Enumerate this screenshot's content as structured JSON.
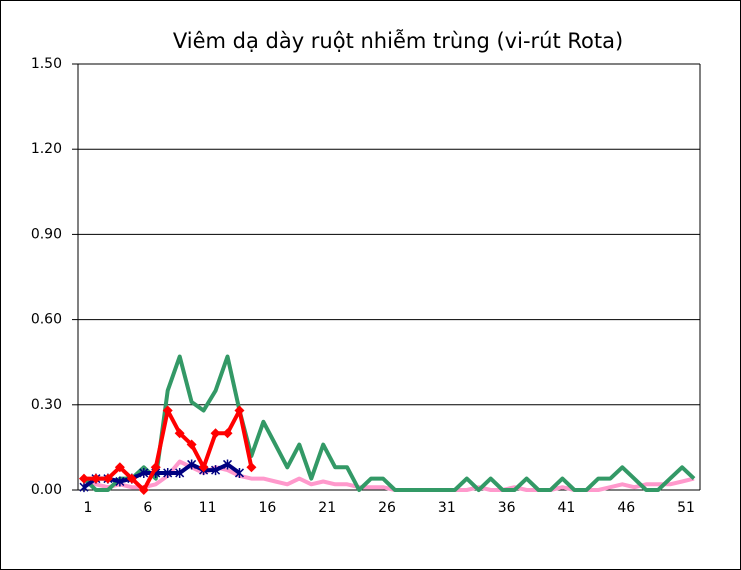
{
  "chart_data": {
    "type": "line",
    "title": "Viêm dạ dày ruột nhiễm trùng (vi-rút Rota)",
    "categories": [
      "1",
      null,
      null,
      null,
      null,
      "6",
      null,
      null,
      null,
      null,
      "11",
      null,
      null,
      null,
      null,
      "16",
      null,
      null,
      null,
      null,
      "21",
      null,
      null,
      null,
      null,
      "26",
      null,
      null,
      null,
      null,
      "31",
      null,
      null,
      null,
      null,
      "36",
      null,
      null,
      null,
      null,
      "41",
      null,
      null,
      null,
      null,
      "46",
      null,
      null,
      null,
      null,
      "51",
      null
    ],
    "series": [
      {
        "color": "#ff99cc",
        "marker": "none",
        "values": [
          0.03,
          0.02,
          0.01,
          0.02,
          0.01,
          0.01,
          0.02,
          0.05,
          0.1,
          0.08,
          0.06,
          0.08,
          0.07,
          0.05,
          0.04,
          0.04,
          0.03,
          0.02,
          0.04,
          0.02,
          0.03,
          0.02,
          0.02,
          0.01,
          0.01,
          0.01,
          0,
          0,
          0,
          0,
          0,
          0,
          0,
          0.01,
          0,
          0,
          0.01,
          0,
          0,
          0,
          0.01,
          0,
          0,
          0,
          0.01,
          0.02,
          0.01,
          0.02,
          0.02,
          0.02,
          0.03,
          0.04
        ]
      },
      {
        "color": "#339966",
        "marker": "none",
        "values": [
          0.04,
          0,
          0,
          0.04,
          0.04,
          0.08,
          0.04,
          0.35,
          0.47,
          0.31,
          0.28,
          0.35,
          0.47,
          0.28,
          0.12,
          0.24,
          0.16,
          0.08,
          0.16,
          0.04,
          0.16,
          0.08,
          0.08,
          0,
          0.04,
          0.04,
          0,
          0,
          0,
          0,
          0,
          0,
          0.04,
          0,
          0.04,
          0,
          0,
          0.04,
          0,
          0,
          0.04,
          0,
          0,
          0.04,
          0.04,
          0.08,
          0.04,
          0,
          0,
          0.04,
          0.08,
          0.04
        ]
      },
      {
        "color": "#000080",
        "marker": "asterisk",
        "values": [
          0.01,
          0.04,
          0.04,
          0.03,
          0.04,
          0.06,
          0.06,
          0.06,
          0.06,
          0.09,
          0.07,
          0.07,
          0.09,
          0.06,
          null,
          null,
          null,
          null,
          null,
          null,
          null,
          null,
          null,
          null,
          null,
          null,
          null,
          null,
          null,
          null,
          null,
          null,
          null,
          null,
          null,
          null,
          null,
          null,
          null,
          null,
          null,
          null,
          null,
          null,
          null,
          null,
          null,
          null,
          null,
          null,
          null,
          null
        ]
      },
      {
        "color": "#ff0000",
        "marker": "diamond",
        "values": [
          0.04,
          0.04,
          0.04,
          0.08,
          0.04,
          0.0,
          0.08,
          0.28,
          0.2,
          0.16,
          0.08,
          0.2,
          0.2,
          0.28,
          0.08,
          null,
          null,
          null,
          null,
          null,
          null,
          null,
          null,
          null,
          null,
          null,
          null,
          null,
          null,
          null,
          null,
          null,
          null,
          null,
          null,
          null,
          null,
          null,
          null,
          null,
          null,
          null,
          null,
          null,
          null,
          null,
          null,
          null,
          null,
          null,
          null,
          null
        ]
      }
    ],
    "ylim": [
      0,
      1.5
    ],
    "yticks": [
      {
        "value": 0,
        "label": "0.00"
      },
      {
        "value": 0.3,
        "label": "0.30"
      },
      {
        "value": 0.6,
        "label": "0.60"
      },
      {
        "value": 0.9,
        "label": "0.90"
      },
      {
        "value": 1.2,
        "label": "1.20"
      },
      {
        "value": 1.5,
        "label": "1.50"
      }
    ],
    "grid": true
  }
}
